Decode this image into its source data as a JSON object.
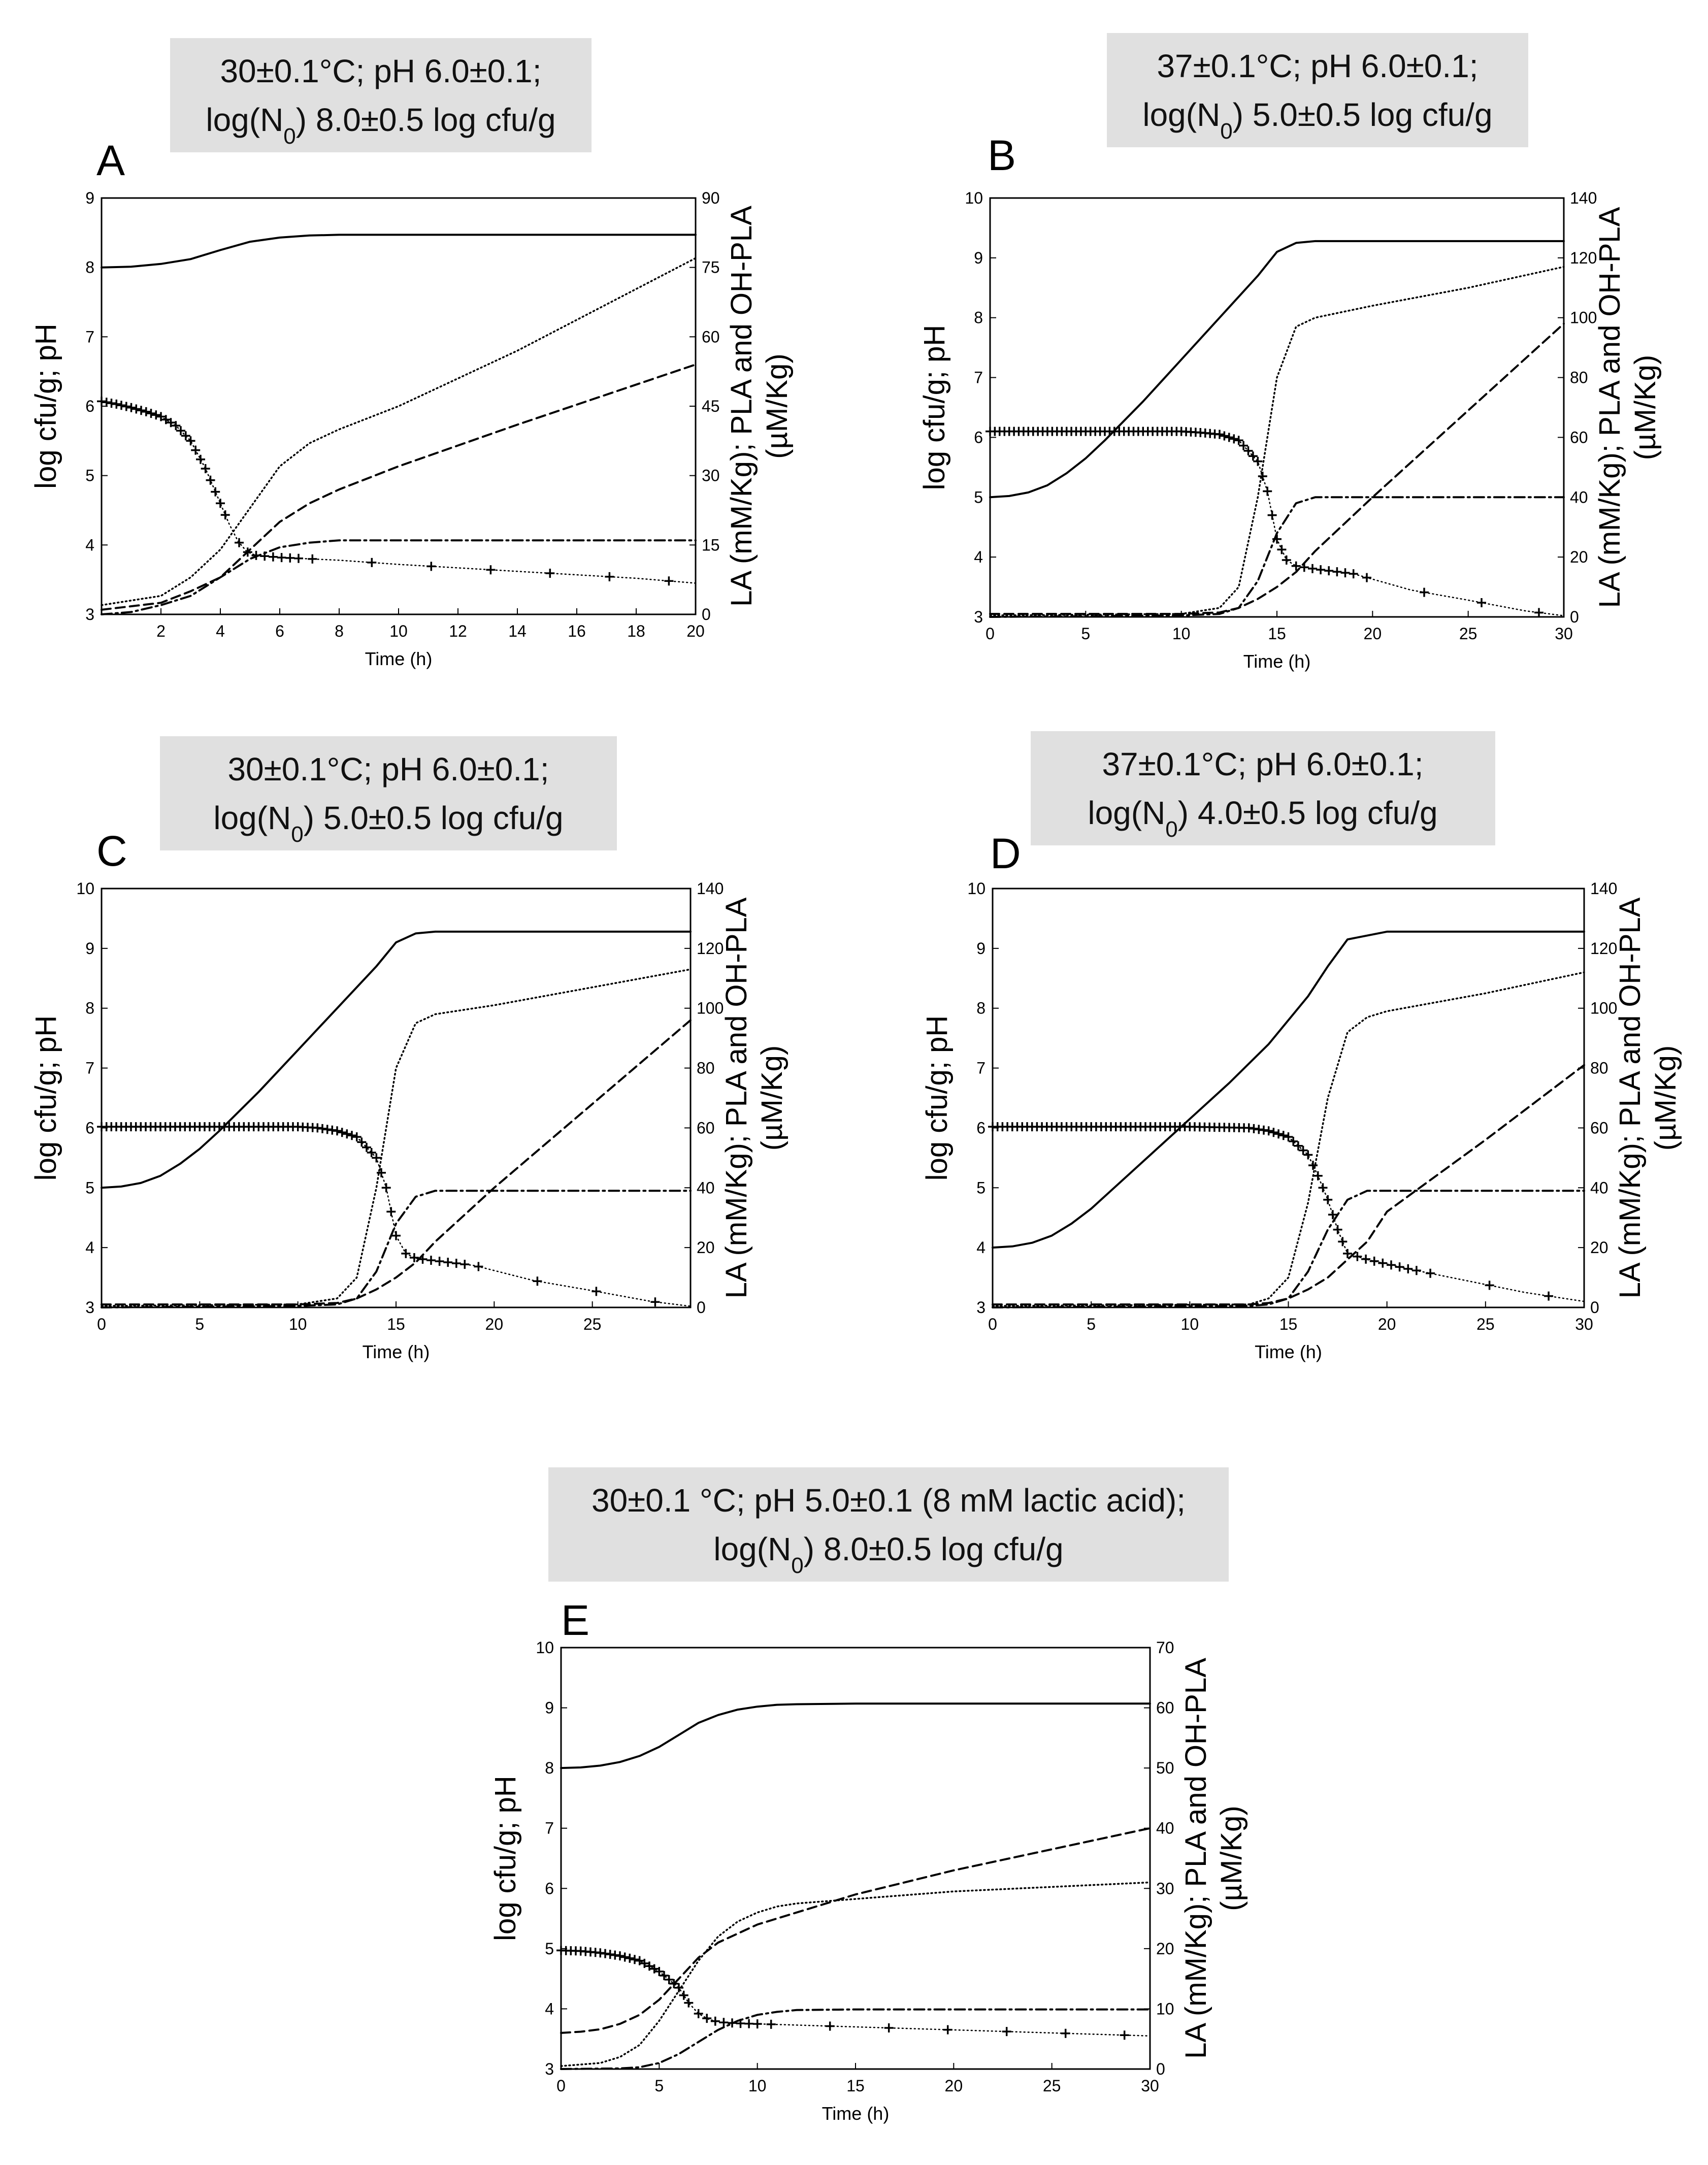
{
  "figure": {
    "conditions": [
      {
        "line1": "30±0.1°C; pH 6.0±0.1;",
        "line2_prefix": "log(N",
        "line2_sub": "0",
        "line2_suffix": ") 8.0±0.5 log cfu/g"
      },
      {
        "line1": "37±0.1°C; pH 6.0±0.1;",
        "line2_prefix": "log(N",
        "line2_sub": "0",
        "line2_suffix": ") 5.0±0.5 log cfu/g"
      },
      {
        "line1": "30±0.1°C; pH 6.0±0.1;",
        "line2_prefix": "log(N",
        "line2_sub": "0",
        "line2_suffix": ") 5.0±0.5 log cfu/g"
      },
      {
        "line1": "37±0.1°C; pH 6.0±0.1;",
        "line2_prefix": "log(N",
        "line2_sub": "0",
        "line2_suffix": ") 4.0±0.5 log cfu/g"
      },
      {
        "line1": "30±0.1 °C; pH 5.0±0.1 (8 mM lactic acid);",
        "line2_prefix": "log(N",
        "line2_sub": "0",
        "line2_suffix": ") 8.0±0.5 log cfu/g"
      }
    ]
  },
  "chart_data": [
    {
      "panel": "A",
      "type": "line",
      "xlabel": "Time (h)",
      "ylabel": "log cfu/g; pH",
      "ylabel2_line1": "LA (mM/Kg); PLA and OH-PLA",
      "ylabel2_line2": "(µM/Kg)",
      "xlim": [
        0,
        20
      ],
      "ylim": [
        3,
        9
      ],
      "y2lim": [
        0,
        90
      ],
      "xticks": [
        2,
        4,
        6,
        8,
        10,
        12,
        14,
        16,
        18,
        20
      ],
      "yticks": [
        3,
        4,
        5,
        6,
        7,
        8,
        9
      ],
      "y2ticks": [
        0,
        15,
        30,
        45,
        60,
        75,
        90
      ],
      "series": [
        {
          "name": "log cfu/g",
          "axis": "left",
          "style": "solid",
          "x": [
            0,
            1,
            2,
            3,
            4,
            5,
            6,
            7,
            8,
            12,
            16,
            20
          ],
          "y": [
            8.0,
            8.01,
            8.05,
            8.12,
            8.25,
            8.37,
            8.43,
            8.46,
            8.47,
            8.47,
            8.47,
            8.47
          ]
        },
        {
          "name": "pH",
          "axis": "left",
          "style": "plus",
          "markers": "dense",
          "x": [
            0,
            0.5,
            1,
            1.5,
            2,
            2.5,
            3,
            3.5,
            4,
            4.3,
            4.6,
            4.9,
            5.2,
            6,
            7,
            8,
            10,
            12,
            14,
            16,
            18,
            20
          ],
          "y": [
            6.07,
            6.03,
            5.98,
            5.92,
            5.85,
            5.72,
            5.5,
            5.1,
            4.6,
            4.3,
            4.05,
            3.9,
            3.85,
            3.82,
            3.8,
            3.78,
            3.72,
            3.67,
            3.62,
            3.57,
            3.52,
            3.45
          ]
        },
        {
          "name": "LA",
          "axis": "right",
          "style": "dotted",
          "x": [
            0,
            2,
            3,
            4,
            5,
            6,
            7,
            8,
            10,
            14,
            20
          ],
          "y": [
            2,
            4,
            8,
            14,
            23,
            32,
            37,
            40,
            45,
            57,
            77
          ]
        },
        {
          "name": "PLA",
          "axis": "right",
          "style": "dashed",
          "x": [
            0,
            2,
            3,
            4,
            5,
            6,
            7,
            8,
            10,
            14,
            20
          ],
          "y": [
            1,
            2.5,
            5,
            8,
            14,
            20,
            24,
            27,
            32,
            41,
            54
          ]
        },
        {
          "name": "OH-PLA",
          "axis": "right",
          "style": "dashdot",
          "x": [
            0,
            1,
            2,
            3,
            4,
            5,
            6,
            7,
            8,
            12,
            20
          ],
          "y": [
            0,
            0.5,
            2,
            4,
            8,
            12,
            14.5,
            15.5,
            16,
            16,
            16
          ]
        }
      ]
    },
    {
      "panel": "B",
      "type": "line",
      "xlabel": "Time (h)",
      "ylabel": "log cfu/g; pH",
      "ylabel2_line1": "LA (mM/Kg); PLA and OH-PLA",
      "ylabel2_line2": "(µM/Kg)",
      "xlim": [
        0,
        30
      ],
      "ylim": [
        3,
        10
      ],
      "y2lim": [
        0,
        140
      ],
      "xticks": [
        0,
        5,
        10,
        15,
        20,
        25,
        30
      ],
      "yticks": [
        3,
        4,
        5,
        6,
        7,
        8,
        9,
        10
      ],
      "y2ticks": [
        0,
        20,
        40,
        60,
        80,
        100,
        120,
        140
      ],
      "series": [
        {
          "name": "log cfu/g",
          "axis": "left",
          "style": "solid",
          "x": [
            0,
            1,
            2,
            3,
            4,
            5,
            6,
            8,
            10,
            12,
            14,
            15,
            16,
            17,
            20,
            30
          ],
          "y": [
            5.0,
            5.02,
            5.08,
            5.2,
            5.4,
            5.65,
            5.95,
            6.6,
            7.3,
            8.0,
            8.7,
            9.1,
            9.25,
            9.28,
            9.28,
            9.28
          ]
        },
        {
          "name": "pH",
          "axis": "left",
          "style": "plus",
          "markers": "dense",
          "x": [
            0,
            5,
            10,
            11,
            12,
            13,
            14,
            14.5,
            15,
            15.5,
            16,
            17,
            19,
            22,
            25,
            28,
            30
          ],
          "y": [
            6.1,
            6.1,
            6.1,
            6.08,
            6.05,
            5.95,
            5.6,
            5.1,
            4.3,
            3.95,
            3.85,
            3.8,
            3.72,
            3.45,
            3.28,
            3.1,
            3.02
          ]
        },
        {
          "name": "LA",
          "axis": "right",
          "style": "dotted",
          "x": [
            0,
            10,
            12,
            13,
            14,
            15,
            16,
            17,
            20,
            25,
            30
          ],
          "y": [
            0.5,
            1,
            3,
            10,
            40,
            80,
            97,
            100,
            104,
            110,
            117
          ]
        },
        {
          "name": "PLA",
          "axis": "right",
          "style": "dashed",
          "x": [
            0,
            10,
            12,
            13,
            14,
            15,
            16,
            17,
            20,
            25,
            30
          ],
          "y": [
            1,
            1,
            1.5,
            3,
            6,
            10,
            15,
            22,
            40,
            69,
            98
          ]
        },
        {
          "name": "OH-PLA",
          "axis": "right",
          "style": "dashdot",
          "x": [
            0,
            10,
            12,
            13,
            14,
            15,
            16,
            17,
            20,
            30
          ],
          "y": [
            0,
            0.5,
            1,
            3,
            12,
            28,
            38,
            40,
            40,
            40
          ]
        }
      ]
    },
    {
      "panel": "C",
      "type": "line",
      "xlabel": "Time (h)",
      "ylabel": "log cfu/g; pH",
      "ylabel2_line1": "LA (mM/Kg); PLA and OH-PLA",
      "ylabel2_line2": "(µM/Kg)",
      "xlim": [
        0,
        30
      ],
      "ylim": [
        3,
        10
      ],
      "y2lim": [
        0,
        140
      ],
      "xticks": [
        0,
        5,
        10,
        15,
        20,
        25
      ],
      "yticks": [
        3,
        4,
        5,
        6,
        7,
        8,
        9,
        10
      ],
      "y2ticks": [
        0,
        20,
        40,
        60,
        80,
        100,
        120,
        140
      ],
      "series": [
        {
          "name": "log cfu/g",
          "axis": "left",
          "style": "solid",
          "x": [
            0,
            1,
            2,
            3,
            4,
            5,
            6,
            8,
            10,
            12,
            14,
            15,
            16,
            17,
            20,
            30
          ],
          "y": [
            5.0,
            5.02,
            5.08,
            5.2,
            5.4,
            5.65,
            5.95,
            6.6,
            7.3,
            8.0,
            8.7,
            9.1,
            9.25,
            9.28,
            9.28,
            9.28
          ]
        },
        {
          "name": "pH",
          "axis": "left",
          "style": "plus",
          "markers": "dense",
          "x": [
            0,
            5,
            10,
            11,
            12,
            13,
            14,
            14.5,
            15,
            15.5,
            16,
            17,
            19,
            22,
            25,
            28,
            30
          ],
          "y": [
            6.02,
            6.02,
            6.02,
            6.0,
            5.95,
            5.85,
            5.5,
            5.0,
            4.2,
            3.9,
            3.82,
            3.78,
            3.7,
            3.45,
            3.28,
            3.1,
            3.02
          ]
        },
        {
          "name": "LA",
          "axis": "right",
          "style": "dotted",
          "x": [
            0,
            10,
            12,
            13,
            14,
            15,
            16,
            17,
            20,
            25,
            30
          ],
          "y": [
            0.5,
            1,
            3,
            10,
            40,
            80,
            95,
            98,
            101,
            107,
            113
          ]
        },
        {
          "name": "PLA",
          "axis": "right",
          "style": "dashed",
          "x": [
            0,
            10,
            12,
            13,
            14,
            15,
            16,
            17,
            20,
            25,
            30
          ],
          "y": [
            1,
            1,
            1.5,
            3,
            6,
            10,
            15,
            22,
            40,
            68,
            96
          ]
        },
        {
          "name": "OH-PLA",
          "axis": "right",
          "style": "dashdot",
          "x": [
            0,
            10,
            12,
            13,
            14,
            15,
            16,
            17,
            20,
            30
          ],
          "y": [
            0,
            0.5,
            1,
            3,
            12,
            28,
            37,
            39,
            39,
            39
          ]
        }
      ]
    },
    {
      "panel": "D",
      "type": "line",
      "xlabel": "Time (h)",
      "ylabel": "log cfu/g; pH",
      "ylabel2_line1": "LA (mM/Kg); PLA and OH-PLA",
      "ylabel2_line2": "(µM/Kg)",
      "xlim": [
        0,
        30
      ],
      "ylim": [
        3,
        10
      ],
      "y2lim": [
        0,
        140
      ],
      "xticks": [
        0,
        5,
        10,
        15,
        20,
        25,
        30
      ],
      "yticks": [
        3,
        4,
        5,
        6,
        7,
        8,
        9,
        10
      ],
      "y2ticks": [
        0,
        20,
        40,
        60,
        80,
        100,
        120,
        140
      ],
      "series": [
        {
          "name": "log cfu/g",
          "axis": "left",
          "style": "solid",
          "x": [
            0,
            1,
            2,
            3,
            4,
            5,
            6,
            8,
            10,
            12,
            14,
            16,
            17,
            18,
            20,
            30
          ],
          "y": [
            4.0,
            4.02,
            4.08,
            4.2,
            4.4,
            4.65,
            4.95,
            5.55,
            6.15,
            6.75,
            7.4,
            8.2,
            8.7,
            9.15,
            9.28,
            9.28
          ]
        },
        {
          "name": "pH",
          "axis": "left",
          "style": "plus",
          "markers": "dense",
          "x": [
            0,
            5,
            10,
            13,
            14,
            15,
            16,
            16.5,
            17,
            17.5,
            18,
            19,
            21,
            24,
            27,
            30
          ],
          "y": [
            6.02,
            6.02,
            6.02,
            6.0,
            5.95,
            5.85,
            5.55,
            5.2,
            4.8,
            4.3,
            3.9,
            3.8,
            3.65,
            3.45,
            3.25,
            3.1
          ]
        },
        {
          "name": "LA",
          "axis": "right",
          "style": "dotted",
          "x": [
            0,
            13,
            14,
            15,
            16,
            17,
            18,
            19,
            20,
            25,
            30
          ],
          "y": [
            0.5,
            1,
            3,
            10,
            35,
            70,
            92,
            97,
            99,
            105,
            112
          ]
        },
        {
          "name": "PLA",
          "axis": "right",
          "style": "dashed",
          "x": [
            0,
            13,
            14,
            15,
            16,
            17,
            18,
            19,
            20,
            25,
            30
          ],
          "y": [
            1,
            1,
            1.5,
            3,
            6,
            10,
            16,
            22,
            32,
            56,
            81
          ]
        },
        {
          "name": "OH-PLA",
          "axis": "right",
          "style": "dashdot",
          "x": [
            0,
            13,
            14,
            15,
            16,
            17,
            18,
            19,
            20,
            30
          ],
          "y": [
            0,
            0.5,
            1,
            3,
            12,
            26,
            36,
            39,
            39,
            39
          ]
        }
      ]
    },
    {
      "panel": "E",
      "type": "line",
      "xlabel": "Time (h)",
      "ylabel": "log cfu/g; pH",
      "ylabel2_line1": "LA (mM/Kg); PLA and OH-PLA",
      "ylabel2_line2": "(µM/Kg)",
      "xlim": [
        0,
        30
      ],
      "ylim": [
        3,
        10
      ],
      "y2lim": [
        0,
        70
      ],
      "xticks": [
        0,
        5,
        10,
        15,
        20,
        25,
        30
      ],
      "yticks": [
        3,
        4,
        5,
        6,
        7,
        8,
        9,
        10
      ],
      "y2ticks": [
        0,
        10,
        20,
        30,
        40,
        50,
        60,
        70
      ],
      "series": [
        {
          "name": "log cfu/g",
          "axis": "left",
          "style": "solid",
          "x": [
            0,
            1,
            2,
            3,
            4,
            5,
            6,
            7,
            8,
            9,
            10,
            11,
            12,
            15,
            30
          ],
          "y": [
            8.0,
            8.01,
            8.04,
            8.1,
            8.2,
            8.35,
            8.55,
            8.75,
            8.88,
            8.97,
            9.02,
            9.05,
            9.06,
            9.07,
            9.07
          ]
        },
        {
          "name": "pH",
          "axis": "left",
          "style": "plus",
          "markers": "dense",
          "x": [
            0,
            1,
            2,
            3,
            4,
            5,
            6,
            6.5,
            7,
            7.5,
            8,
            9,
            10,
            12,
            15,
            20,
            25,
            30
          ],
          "y": [
            4.97,
            4.96,
            4.93,
            4.88,
            4.8,
            4.62,
            4.35,
            4.1,
            3.92,
            3.83,
            3.78,
            3.76,
            3.75,
            3.73,
            3.7,
            3.65,
            3.6,
            3.55
          ]
        },
        {
          "name": "LA",
          "axis": "right",
          "style": "dotted",
          "x": [
            0,
            2,
            3,
            4,
            5,
            6,
            7,
            8,
            9,
            10,
            11,
            12,
            14,
            20,
            30
          ],
          "y": [
            0.5,
            1,
            2,
            4,
            8,
            13,
            18,
            22,
            24.5,
            26,
            27,
            27.5,
            28,
            29.5,
            31
          ]
        },
        {
          "name": "PLA",
          "axis": "right",
          "style": "dashed",
          "x": [
            0,
            1,
            2,
            3,
            4,
            5,
            6,
            7,
            8,
            10,
            12,
            15,
            20,
            25,
            30
          ],
          "y": [
            6,
            6.2,
            6.6,
            7.5,
            9,
            11.5,
            15,
            18.5,
            21,
            24,
            26,
            29,
            33,
            36.5,
            40
          ]
        },
        {
          "name": "OH-PLA",
          "axis": "right",
          "style": "dashdot",
          "x": [
            0,
            3,
            4,
            5,
            6,
            7,
            8,
            9,
            10,
            11,
            12,
            15,
            30
          ],
          "y": [
            0,
            0.1,
            0.3,
            1,
            2.5,
            4.5,
            6.5,
            8,
            9,
            9.5,
            9.8,
            9.9,
            9.9
          ]
        }
      ]
    }
  ]
}
